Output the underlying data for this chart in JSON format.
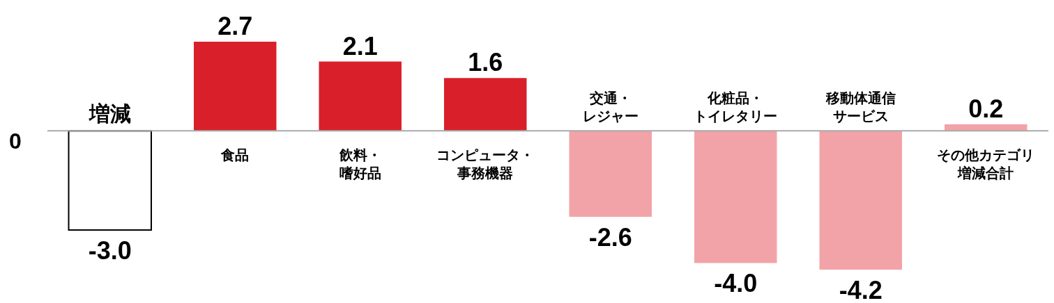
{
  "chart_data": {
    "type": "bar",
    "categories": [
      "増減",
      "食品",
      "飲料・嗜好品",
      "コンピュータ・事務機器",
      "交通・レジャー",
      "化粧品・トイレタリー",
      "移動体通信サービス",
      "その他カテゴリ増減合計"
    ],
    "values": [
      -3.0,
      2.7,
      2.1,
      1.6,
      -2.6,
      -4.0,
      -4.2,
      0.2
    ],
    "value_labels": [
      "-3.0",
      "2.7",
      "2.1",
      "1.6",
      "-2.6",
      "-4.0",
      "-4.2",
      "0.2"
    ],
    "colors": [
      "#ffffff",
      "#d9202a",
      "#d9202a",
      "#d9202a",
      "#f2a3a7",
      "#f2a3a7",
      "#f2a3a7",
      "#f2a3a7"
    ],
    "annotations": [
      "0"
    ]
  }
}
